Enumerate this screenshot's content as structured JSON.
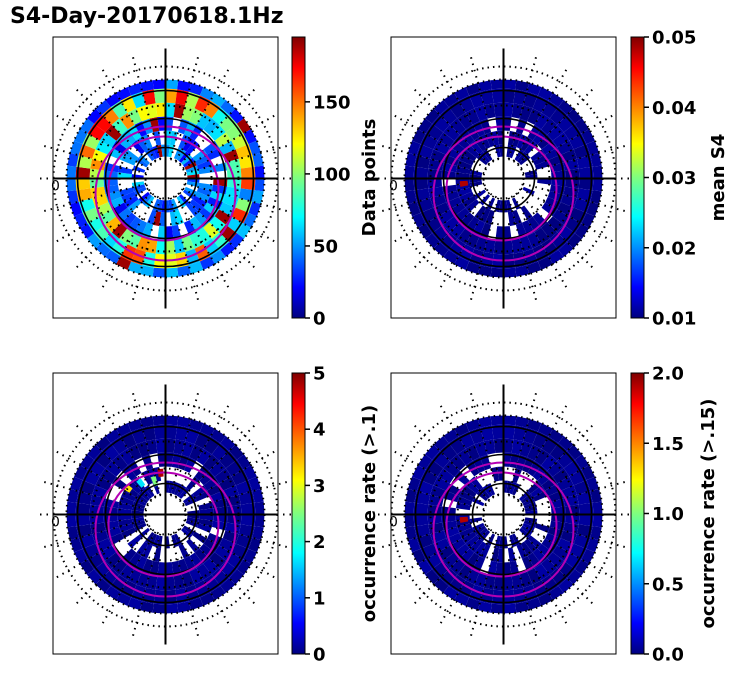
{
  "title": "S4-Day-20170618.1Hz",
  "chart_data": [
    {
      "type": "heatmap",
      "projection": "polar",
      "position": "top-left",
      "colorbar": {
        "label": "Data points",
        "min": 0,
        "max": 195,
        "ticks": [
          0,
          50,
          100,
          150
        ],
        "tick_labels": [
          "0",
          "50",
          "100",
          "150"
        ]
      },
      "longitude_label": "0",
      "value_level": "mixed 0-195 (rings mostly 30-120, hotspots up to ~190)"
    },
    {
      "type": "heatmap",
      "projection": "polar",
      "position": "top-right",
      "colorbar": {
        "label": "mean S4",
        "min": 0.01,
        "max": 0.05,
        "ticks": [
          0.01,
          0.02,
          0.03,
          0.04,
          0.05
        ],
        "tick_labels": [
          "0.01",
          "0.02",
          "0.03",
          "0.04",
          "0.05"
        ]
      },
      "longitude_label": "0",
      "value_level": "mostly ~0.01"
    },
    {
      "type": "heatmap",
      "projection": "polar",
      "position": "bottom-left",
      "colorbar": {
        "label": "occurrence rate (>.1)",
        "min": 0,
        "max": 5,
        "ticks": [
          0,
          1,
          2,
          3,
          4,
          5
        ],
        "tick_labels": [
          "0",
          "1",
          "2",
          "3",
          "4",
          "5"
        ]
      },
      "longitude_label": "0",
      "value_level": "mostly 0, a few cells 1-5"
    },
    {
      "type": "heatmap",
      "projection": "polar",
      "position": "bottom-right",
      "colorbar": {
        "label": "occurrence rate (>.15)",
        "min": 0.0,
        "max": 2.0,
        "ticks": [
          0.0,
          0.5,
          1.0,
          1.5,
          2.0
        ],
        "tick_labels": [
          "0.0",
          "0.5",
          "1.0",
          "1.5",
          "2.0"
        ]
      },
      "longitude_label": "0",
      "value_level": "mostly 0"
    }
  ],
  "colors": {
    "jet": [
      "#00007f",
      "#0000ff",
      "#007fff",
      "#00ffff",
      "#7fff7f",
      "#ffff00",
      "#ff7f00",
      "#ff0000",
      "#7f0000"
    ],
    "oval": "#b400b4",
    "axes": "#000000"
  }
}
